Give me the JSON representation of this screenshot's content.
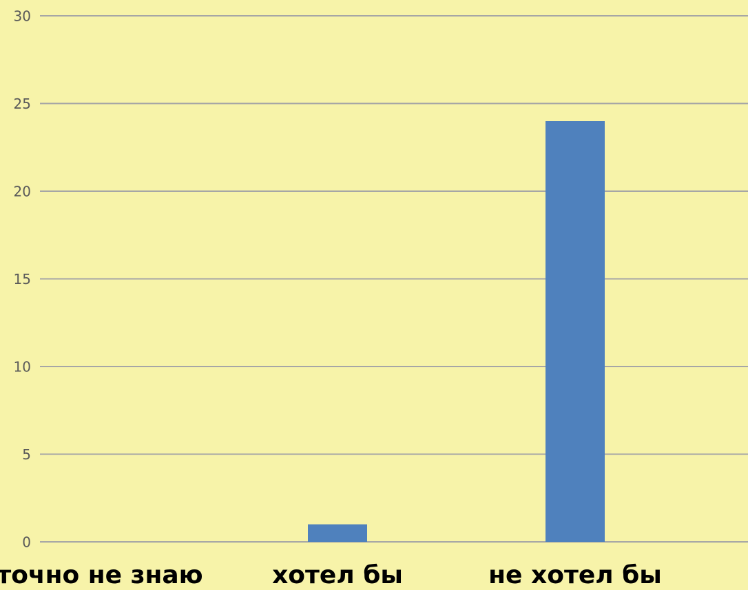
{
  "chart_data": {
    "type": "bar",
    "categories": [
      "точно не знаю",
      "хотел бы",
      "не хотел бы"
    ],
    "values": [
      0,
      1,
      24
    ],
    "color": "#4f81bd",
    "ylim": [
      0,
      30
    ],
    "yticks": [
      0,
      5,
      10,
      15,
      20,
      25,
      30
    ],
    "grid": true
  }
}
